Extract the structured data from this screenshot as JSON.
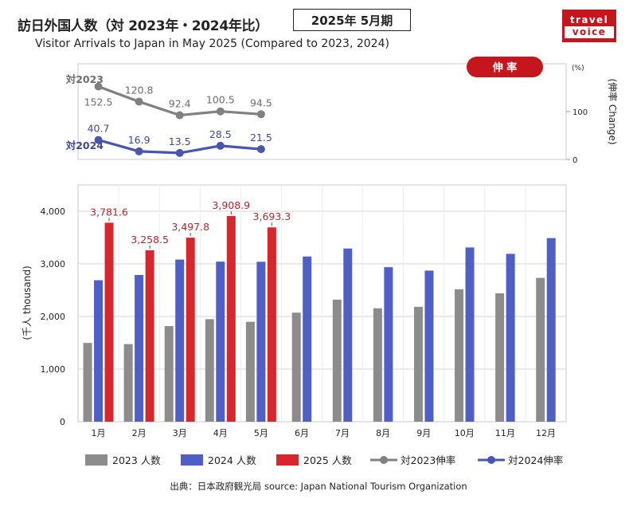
{
  "header": {
    "title": "訪日外国人数（対 2023年・2024年比）",
    "subtitle": "Visitor Arrivals to Japan in May 2025 (Compared to 2023, 2024)",
    "month_badge": "2025年 5月期"
  },
  "logo": {
    "line1": "travel",
    "line2": "voice"
  },
  "source": "出典：日本政府観光局  source: Japan National Tourism Organization",
  "chart_data": [
    {
      "type": "line",
      "badge": "伸 率",
      "ylabel": "(伸率 Change)",
      "yunit": "(%)",
      "yticks": [
        0,
        100
      ],
      "categories": [
        "1月",
        "2月",
        "3月",
        "4月",
        "5月"
      ],
      "series": [
        {
          "name": "対2023",
          "legend": "対2023伸率",
          "color": "#808080",
          "values": [
            152.5,
            120.8,
            92.4,
            100.5,
            94.5
          ],
          "labels": [
            "152.5",
            "120.8",
            "92.4",
            "100.5",
            "94.5"
          ]
        },
        {
          "name": "対2024",
          "legend": "対2024伸率",
          "color": "#4a55b0",
          "values": [
            40.7,
            16.9,
            13.5,
            28.5,
            21.5
          ],
          "labels": [
            "40.7",
            "16.9",
            "13.5",
            "28.5",
            "21.5"
          ]
        }
      ]
    },
    {
      "type": "bar",
      "ylabel": "(千人 thousand)",
      "ylim": [
        0,
        4500
      ],
      "yticks": [
        "0",
        "1,000",
        "2,000",
        "3,000",
        "4,000"
      ],
      "ytick_values": [
        0,
        1000,
        2000,
        3000,
        4000
      ],
      "categories": [
        "1月",
        "2月",
        "3月",
        "4月",
        "5月",
        "6月",
        "7月",
        "8月",
        "9月",
        "10月",
        "11月",
        "12月"
      ],
      "grid": true,
      "legend_position": "bottom",
      "series": [
        {
          "name": "2023 人数",
          "color": "#8c8c8c",
          "values": [
            1497,
            1475,
            1817,
            1949,
            1899,
            2073,
            2320,
            2156,
            2184,
            2517,
            2441,
            2734
          ]
        },
        {
          "name": "2024 人数",
          "color": "#4f5fc6",
          "values": [
            2689,
            2788,
            3082,
            3043,
            3040,
            3140,
            3292,
            2937,
            2872,
            3312,
            3190,
            3490
          ]
        },
        {
          "name": "2025 人数",
          "color": "#d7262c",
          "values": [
            3781.6,
            3258.5,
            3497.8,
            3908.9,
            3693.3,
            null,
            null,
            null,
            null,
            null,
            null,
            null
          ],
          "labels": [
            "3,781.6",
            "3,258.5",
            "3,497.8",
            "3,908.9",
            "3,693.3"
          ]
        }
      ]
    }
  ]
}
